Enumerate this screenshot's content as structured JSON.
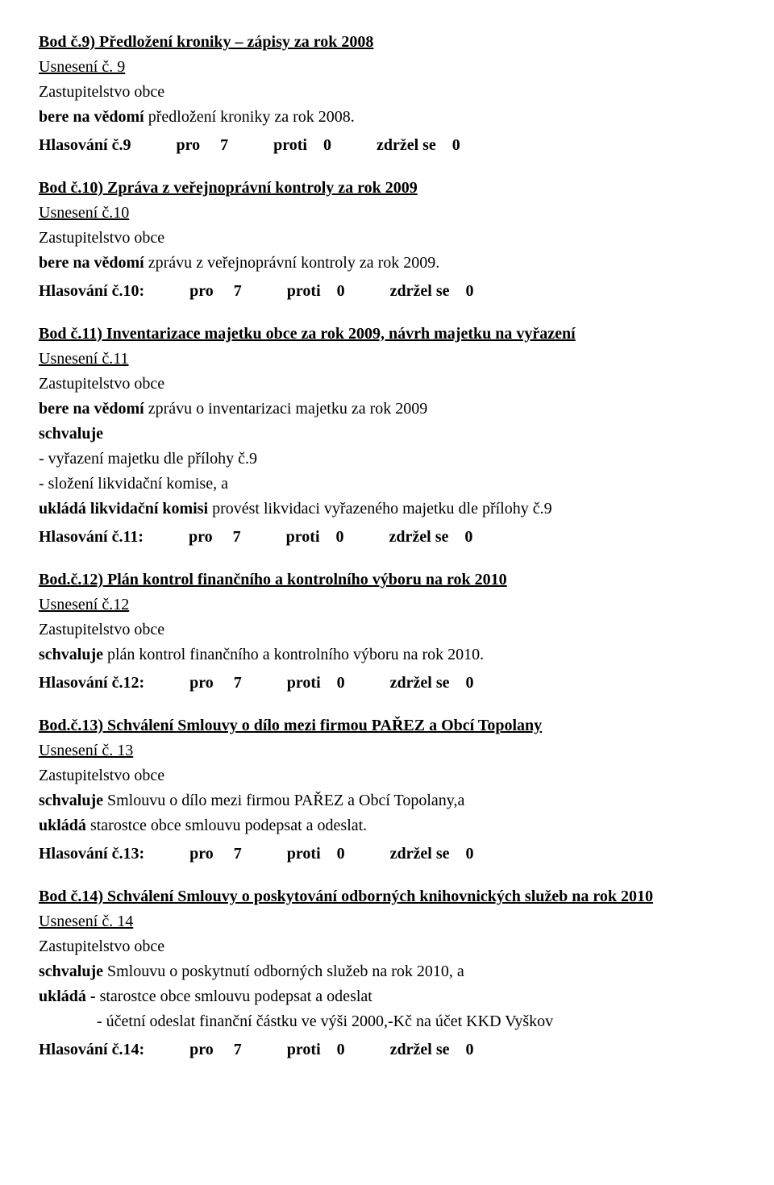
{
  "sections": [
    {
      "heading": "Bod č.9) Předložení kroniky – zápisy za rok 2008",
      "usneseni": "Usnesení č. 9",
      "body_lines": [
        "Zastupitelstvo obce",
        "<b>bere na vědomí</b> předložení kroniky za rok 2008."
      ],
      "vote": {
        "label": "Hlasování č.9",
        "pro": "7",
        "proti": "0",
        "zdrzel": "0"
      }
    },
    {
      "heading": "Bod č.10) Zpráva z veřejnoprávní kontroly za rok 2009",
      "usneseni": "Usnesení č.10",
      "body_lines": [
        "Zastupitelstvo obce",
        "<b>bere na vědomí</b> zprávu z veřejnoprávní kontroly za rok 2009."
      ],
      "vote": {
        "label": "Hlasování č.10:",
        "pro": "7",
        "proti": "0",
        "zdrzel": "0"
      }
    },
    {
      "heading": "Bod č.11) Inventarizace majetku obce za rok 2009,  návrh majetku na vyřazení",
      "usneseni": "Usnesení č.11",
      "body_lines": [
        "Zastupitelstvo obce",
        "<b>bere na vědomí</b> zprávu o inventarizaci majetku za rok 2009",
        "<b>schvaluje</b>",
        "- vyřazení majetku dle přílohy č.9",
        "- složení likvidační komise, a",
        "<b>ukládá likvidační komisi</b> provést likvidaci vyřazeného majetku dle přílohy č.9"
      ],
      "vote": {
        "label": "Hlasování č.11:",
        "pro": "7",
        "proti": "0",
        "zdrzel": "0"
      }
    },
    {
      "heading": "Bod.č.12) Plán kontrol finančního a kontrolního výboru na rok 2010",
      "usneseni": "Usnesení č.12",
      "body_lines": [
        "Zastupitelstvo obce",
        "<b>schvaluje</b> plán kontrol finančního a kontrolního výboru na rok 2010."
      ],
      "vote": {
        "label": "Hlasování č.12:",
        "pro": "7",
        "proti": "0",
        "zdrzel": "0"
      }
    },
    {
      "heading": "Bod.č.13) Schválení Smlouvy o dílo mezi firmou PAŘEZ a Obcí Topolany",
      "usneseni": "Usnesení č. 13",
      "body_lines": [
        "Zastupitelstvo obce",
        "<b>schvaluje</b> Smlouvu o dílo mezi firmou PAŘEZ a Obcí Topolany,a",
        "<b>ukládá</b> starostce obce smlouvu podepsat a odeslat."
      ],
      "vote": {
        "label": "Hlasování č.13:",
        "pro": "7",
        "proti": "0",
        "zdrzel": "0"
      }
    },
    {
      "heading": "Bod č.14) Schválení Smlouvy o poskytování odborných knihovnických služeb na rok 2010",
      "usneseni": "Usnesení č. 14",
      "body_lines": [
        "Zastupitelstvo obce",
        "<b>schvaluje</b> Smlouvu o poskytnutí odborných služeb na rok 2010, a",
        "<b>ukládá  -</b> starostce obce smlouvu podepsat a odeslat",
        "<span class=\"indent\">- účetní odeslat finanční částku ve výši 2000,-Kč na účet KKD Vyškov</span>"
      ],
      "vote": {
        "label": "Hlasování č.14:",
        "pro": "7",
        "proti": "0",
        "zdrzel": "0"
      }
    }
  ],
  "vote_labels": {
    "pro": "pro",
    "proti": "proti",
    "zdrzel": "zdržel se"
  }
}
